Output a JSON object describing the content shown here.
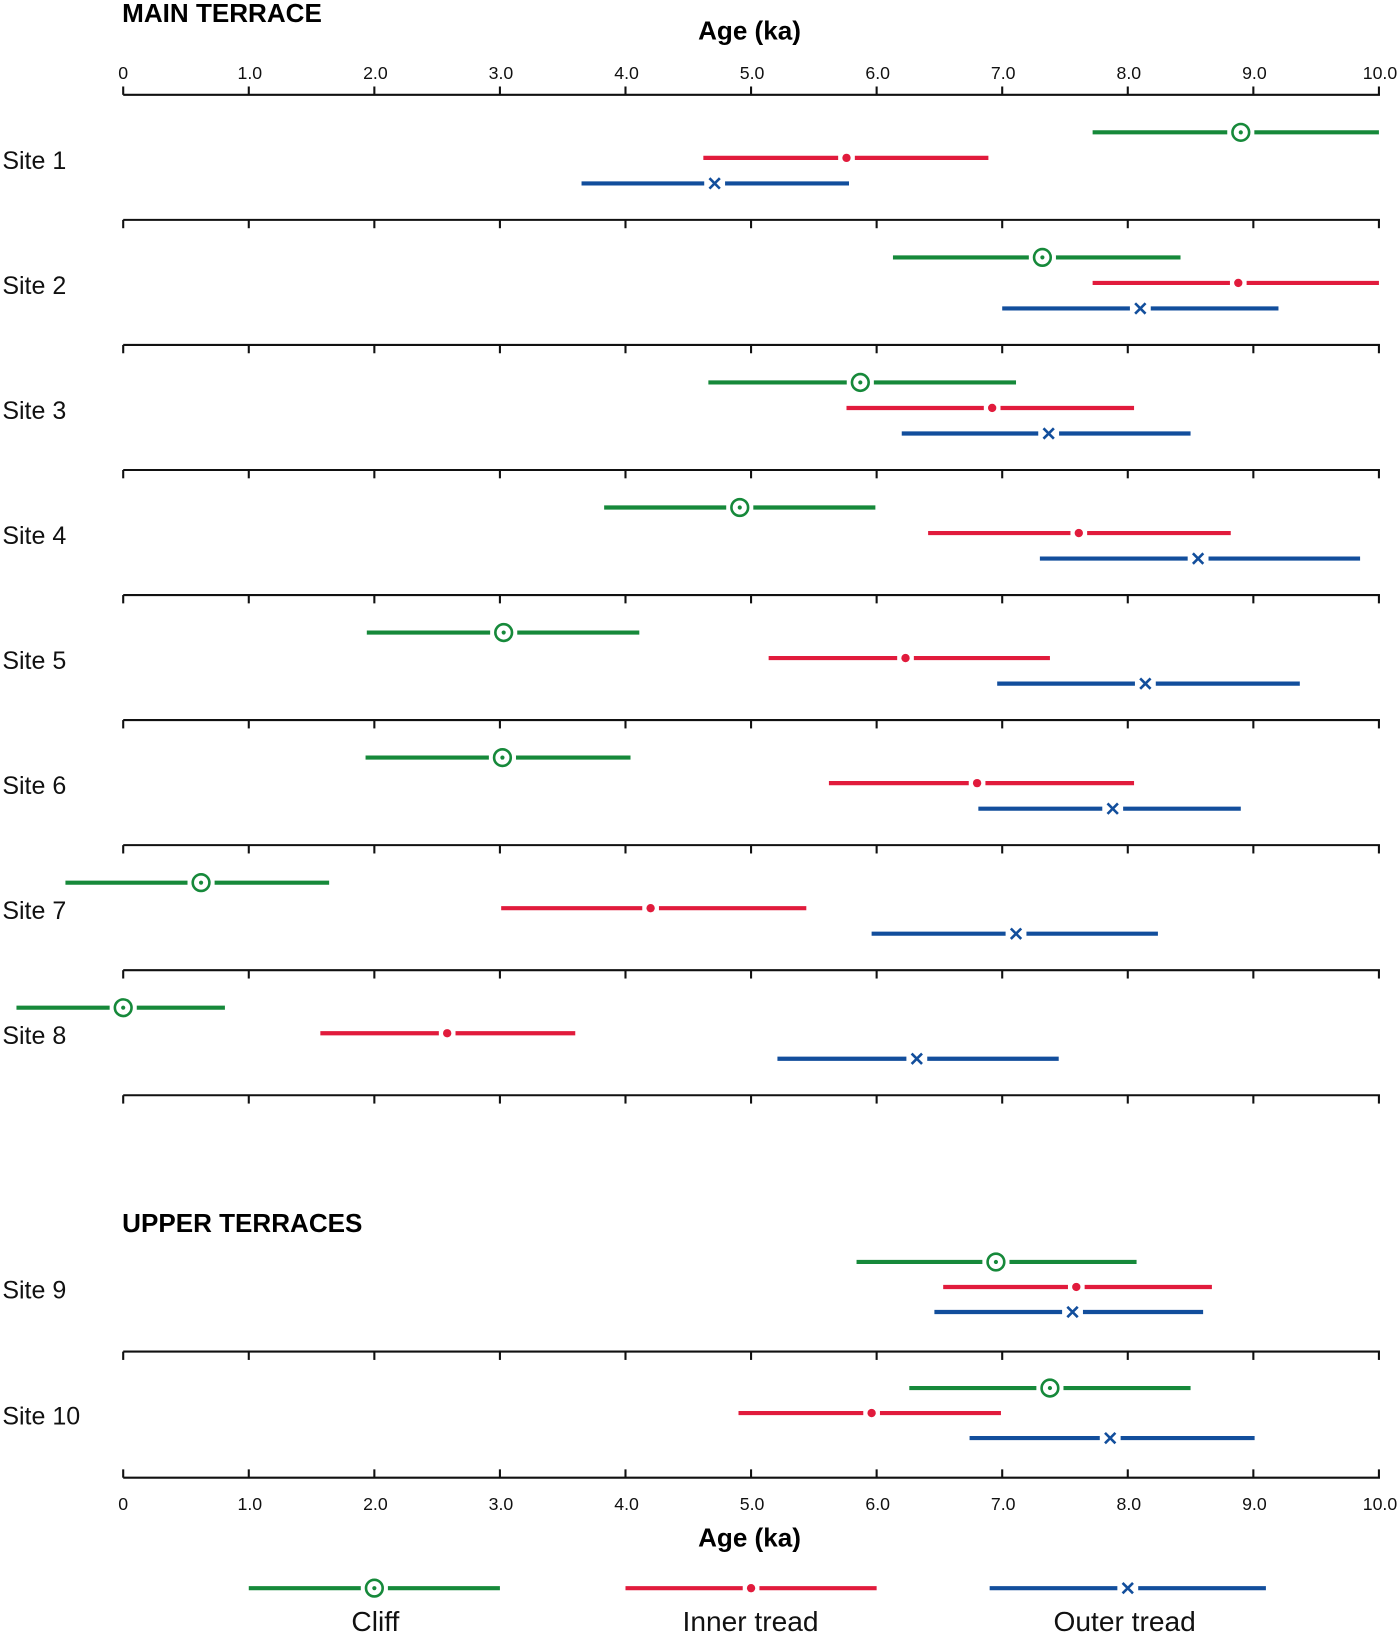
{
  "chart_data": {
    "type": "errorbar",
    "xlabel": "Age (ka)",
    "xlim": [
      0,
      10
    ],
    "xticks": [
      "0",
      "1.0",
      "2.0",
      "3.0",
      "4.0",
      "5.0",
      "6.0",
      "7.0",
      "8.0",
      "9.0",
      "10.0"
    ],
    "colors": {
      "Cliff": "#16893a",
      "Inner tread": "#e11b3c",
      "Outer tread": "#124e9c"
    },
    "legend": [
      "Cliff",
      "Inner tread",
      "Outer tread"
    ],
    "groups": [
      {
        "title": "MAIN TERRACE",
        "sites": [
          {
            "name": "Site 1",
            "Cliff": [
              7.72,
              8.9,
              10.0
            ],
            "Inner tread": [
              4.62,
              5.76,
              6.89
            ],
            "Outer tread": [
              3.65,
              4.71,
              5.78
            ]
          },
          {
            "name": "Site 2",
            "Cliff": [
              6.13,
              7.32,
              8.42
            ],
            "Inner tread": [
              7.72,
              8.88,
              10.0
            ],
            "Outer tread": [
              7.0,
              8.1,
              9.2
            ]
          },
          {
            "name": "Site 3",
            "Cliff": [
              4.66,
              5.87,
              7.11
            ],
            "Inner tread": [
              5.76,
              6.92,
              8.05
            ],
            "Outer tread": [
              6.2,
              7.37,
              8.5
            ]
          },
          {
            "name": "Site 4",
            "Cliff": [
              3.83,
              4.91,
              5.99
            ],
            "Inner tread": [
              6.41,
              7.61,
              8.82
            ],
            "Outer tread": [
              7.3,
              8.56,
              9.85
            ]
          },
          {
            "name": "Site 5",
            "Cliff": [
              1.94,
              3.03,
              4.11
            ],
            "Inner tread": [
              5.14,
              6.23,
              7.38
            ],
            "Outer tread": [
              6.96,
              8.14,
              9.37
            ]
          },
          {
            "name": "Site 6",
            "Cliff": [
              1.93,
              3.02,
              4.04
            ],
            "Inner tread": [
              5.62,
              6.8,
              8.05
            ],
            "Outer tread": [
              6.81,
              7.88,
              8.9
            ]
          },
          {
            "name": "Site 7",
            "Cliff": [
              -0.46,
              0.62,
              1.64
            ],
            "Inner tread": [
              3.01,
              4.2,
              5.44
            ],
            "Outer tread": [
              5.96,
              7.11,
              8.24
            ]
          },
          {
            "name": "Site 8",
            "Cliff": [
              -0.85,
              0.0,
              0.81
            ],
            "Inner tread": [
              1.57,
              2.58,
              3.6
            ],
            "Outer tread": [
              5.21,
              6.32,
              7.45
            ]
          }
        ]
      },
      {
        "title": "UPPER TERRACES",
        "sites": [
          {
            "name": "Site 9",
            "Cliff": [
              5.84,
              6.95,
              8.07
            ],
            "Inner tread": [
              6.53,
              7.59,
              8.67
            ],
            "Outer tread": [
              6.46,
              7.56,
              8.6
            ]
          },
          {
            "name": "Site 10",
            "Cliff": [
              6.26,
              7.38,
              8.5
            ],
            "Inner tread": [
              4.9,
              5.96,
              6.99
            ],
            "Outer tread": [
              6.74,
              7.86,
              9.01
            ]
          }
        ]
      }
    ],
    "legend_example": {
      "Cliff": [
        1.0,
        2.0,
        3.0
      ],
      "Inner tread": [
        4.0,
        5.0,
        6.0
      ],
      "Outer tread": [
        6.9,
        8.0,
        9.1
      ]
    }
  }
}
